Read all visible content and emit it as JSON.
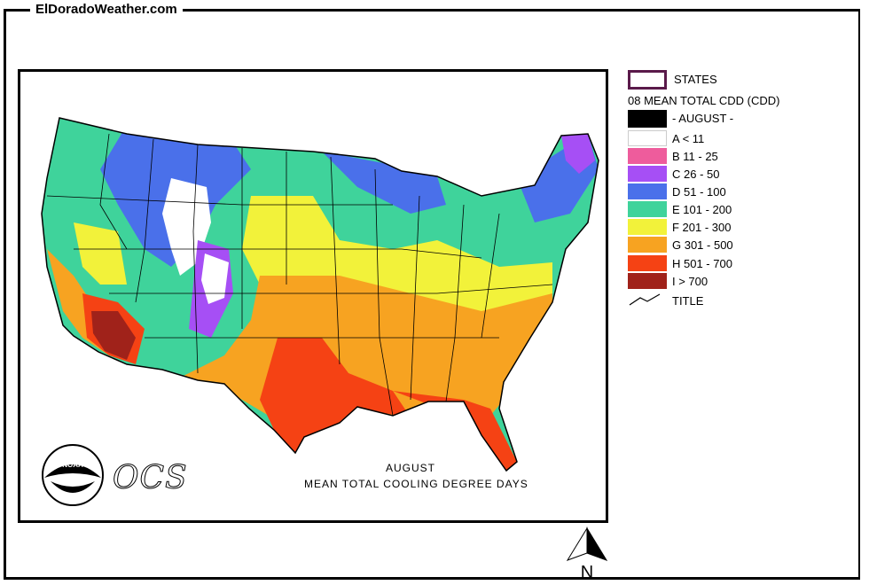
{
  "site": {
    "title": "ElDoradoWeather.com"
  },
  "map": {
    "caption_line1": "AUGUST",
    "caption_line2": "MEAN TOTAL COOLING DEGREE DAYS",
    "ocs_label": "OCS",
    "noaa_label": "NOAA"
  },
  "legend": {
    "states_label": "STATES",
    "title": "08 MEAN TOTAL CDD (CDD)",
    "month_label": "- AUGUST -",
    "title_label": "TITLE",
    "classes": [
      {
        "label": "A < 11",
        "color": "#ffffff"
      },
      {
        "label": "B 11 - 25",
        "color": "#ee5c9c"
      },
      {
        "label": "C 26 - 50",
        "color": "#a64ff5"
      },
      {
        "label": "D 51 - 100",
        "color": "#4a70ea"
      },
      {
        "label": "E 101 - 200",
        "color": "#3fd39b"
      },
      {
        "label": "F 201 - 300",
        "color": "#f2f23a"
      },
      {
        "label": "G 301 - 500",
        "color": "#f7a321"
      },
      {
        "label": "H 501 - 700",
        "color": "#f54214"
      },
      {
        "label": "I > 700",
        "color": "#a0221a"
      }
    ]
  },
  "north_arrow": {
    "label": "N"
  }
}
